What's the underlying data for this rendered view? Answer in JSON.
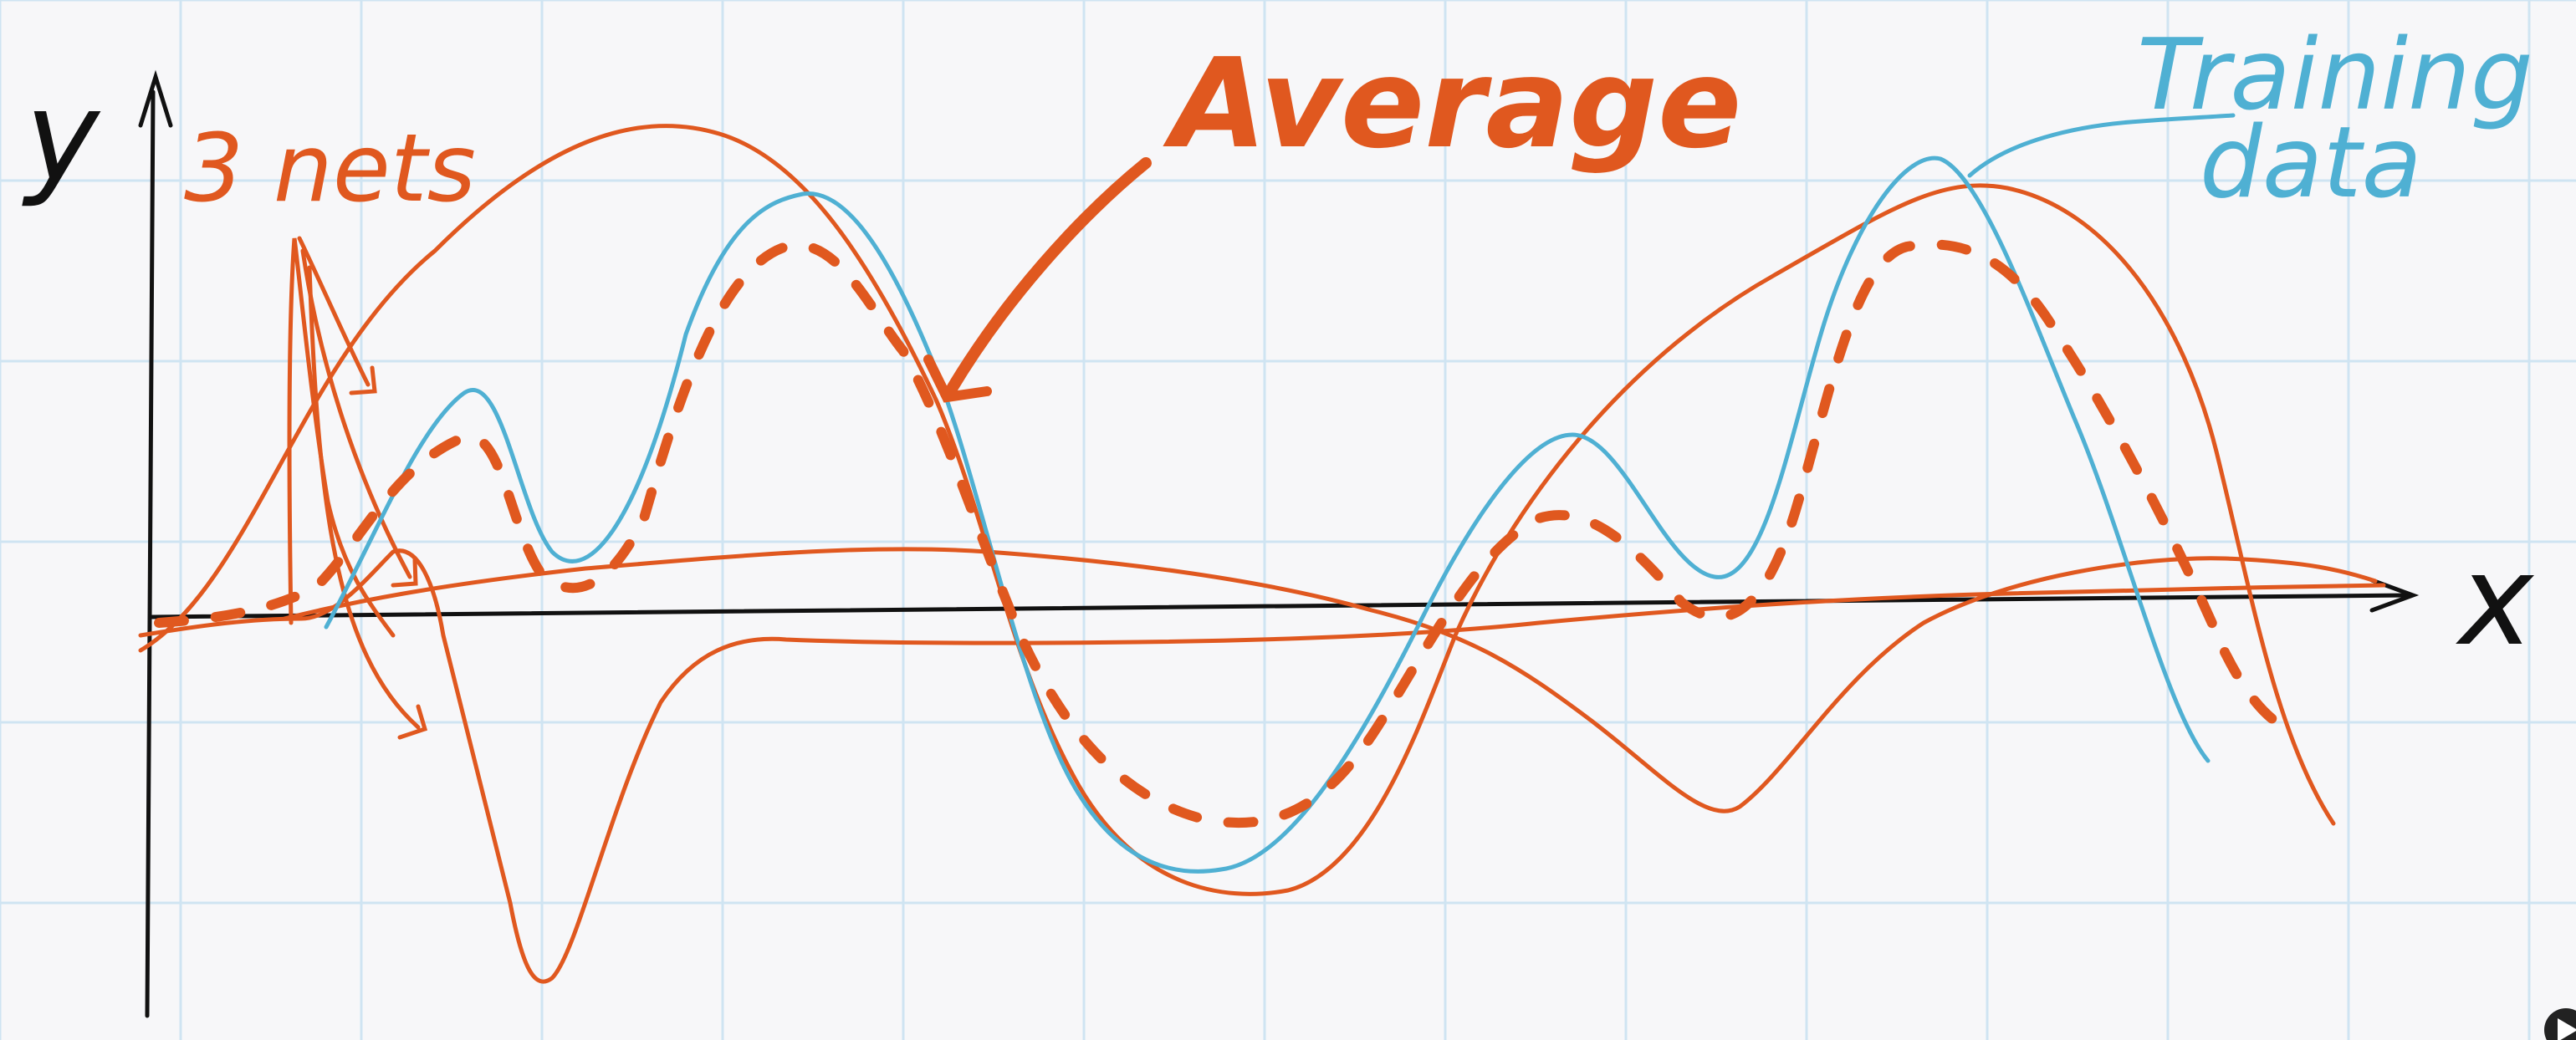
{
  "labels": {
    "y_axis": "y",
    "x_axis": "x",
    "nets": "3 nets",
    "average": "Average",
    "training_line1": "Training",
    "training_line2": "data"
  },
  "colors": {
    "background": "#f7f7f9",
    "grid": "#cfe4f2",
    "axes": "#111111",
    "nets": "#e0581f",
    "average": "#e0581f",
    "training": "#4fb0d3"
  },
  "icons": {
    "corner_badge": "play-icon"
  }
}
